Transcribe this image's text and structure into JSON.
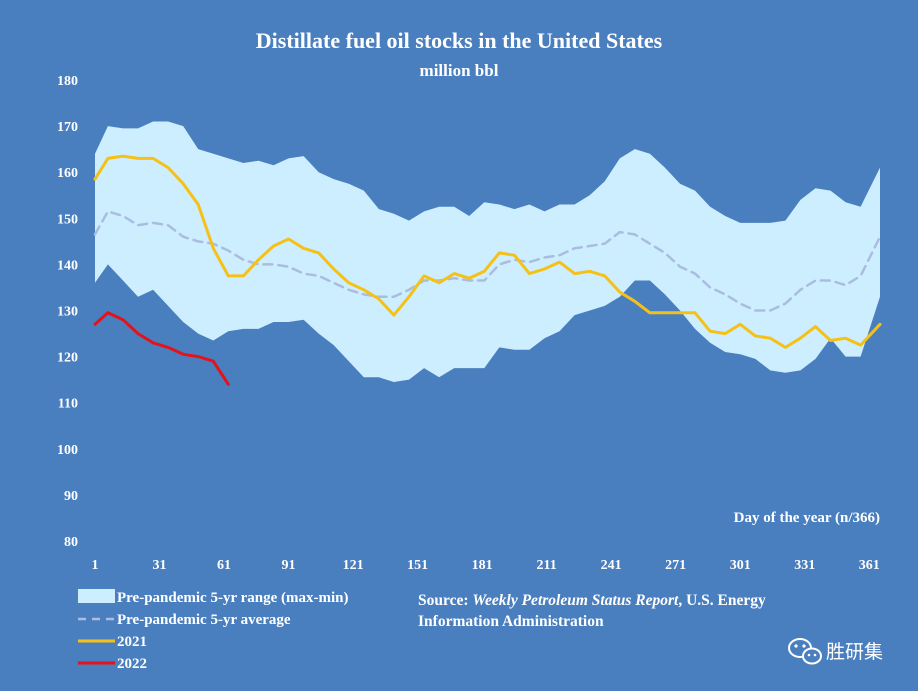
{
  "chart_data": {
    "type": "line",
    "title": "Distillate fuel oil stocks in the United States",
    "subtitle": "million bbl",
    "xlabel": "Day of the year (n/366)",
    "ylabel": "",
    "xlim": [
      1,
      366
    ],
    "ylim": [
      80,
      180
    ],
    "x_ticks": [
      "1",
      "31",
      "61",
      "91",
      "121",
      "151",
      "181",
      "211",
      "241",
      "271",
      "301",
      "331",
      "361"
    ],
    "y_ticks": [
      "80",
      "90",
      "100",
      "110",
      "120",
      "130",
      "140",
      "150",
      "160",
      "170",
      "180"
    ],
    "range": {
      "name": "Pre-pandemic 5-yr range (max-min)",
      "color": "#cdeeff",
      "x": [
        1,
        7,
        14,
        21,
        28,
        35,
        42,
        49,
        56,
        63,
        70,
        77,
        84,
        91,
        98,
        105,
        112,
        119,
        126,
        133,
        140,
        147,
        154,
        161,
        168,
        175,
        182,
        189,
        196,
        203,
        210,
        217,
        224,
        231,
        238,
        245,
        252,
        259,
        266,
        273,
        280,
        287,
        294,
        301,
        308,
        315,
        322,
        329,
        336,
        343,
        350,
        357,
        366
      ],
      "max": [
        164,
        170,
        169.5,
        169.5,
        171,
        171,
        170,
        165,
        164,
        163,
        162,
        162.5,
        161.5,
        163,
        163.5,
        160,
        158.5,
        157.5,
        156,
        152,
        151,
        149.5,
        151.5,
        152.5,
        152.5,
        150.5,
        153.5,
        153,
        152,
        153,
        151.5,
        153,
        153,
        155,
        158,
        163,
        165,
        164,
        161,
        157.5,
        156,
        152.5,
        150.5,
        149,
        149,
        149,
        149.5,
        154,
        156.5,
        156,
        153.5,
        152.5,
        161
      ],
      "min": [
        136,
        140,
        136.5,
        133,
        134.5,
        131,
        127.5,
        125,
        123.5,
        125.5,
        126,
        126,
        127.5,
        127.5,
        128,
        125,
        122.5,
        119,
        115.5,
        115.5,
        114.5,
        115,
        117.5,
        115.5,
        117.5,
        117.5,
        117.5,
        122,
        121.5,
        121.5,
        124,
        125.5,
        129,
        130,
        131,
        133,
        136.5,
        136.5,
        133.5,
        130,
        126,
        123,
        121,
        120.5,
        119.5,
        117,
        116.5,
        117,
        119.5,
        124,
        120,
        120,
        133
      ]
    },
    "series": [
      {
        "name": "Pre-pandemic 5-yr average",
        "color": "#aabde0",
        "style": "dashed",
        "x": [
          1,
          7,
          14,
          21,
          28,
          35,
          42,
          49,
          56,
          63,
          70,
          77,
          84,
          91,
          98,
          105,
          112,
          119,
          126,
          133,
          140,
          147,
          154,
          161,
          168,
          175,
          182,
          189,
          196,
          203,
          210,
          217,
          224,
          231,
          238,
          245,
          252,
          259,
          266,
          273,
          280,
          287,
          294,
          301,
          308,
          315,
          322,
          329,
          336,
          343,
          350,
          357,
          366
        ],
        "values": [
          146.5,
          151.5,
          150.5,
          148.5,
          149,
          148.5,
          146,
          145,
          144.5,
          143,
          141,
          140,
          140,
          139.5,
          138,
          137.5,
          136,
          134.5,
          133.5,
          133,
          133,
          134.5,
          136.5,
          136.5,
          137,
          136.5,
          136.5,
          140,
          141,
          140.5,
          141.5,
          142,
          143.5,
          144,
          144.5,
          147,
          146.5,
          144.5,
          142.5,
          139.5,
          138,
          135,
          133.5,
          131.5,
          130,
          130,
          131.5,
          134.5,
          136.5,
          136.5,
          135.5,
          137.5,
          146
        ]
      },
      {
        "name": "2021",
        "color": "#f5c116",
        "style": "solid",
        "x": [
          1,
          7,
          14,
          21,
          28,
          35,
          42,
          49,
          56,
          63,
          70,
          77,
          84,
          91,
          98,
          105,
          112,
          119,
          126,
          133,
          140,
          147,
          154,
          161,
          168,
          175,
          182,
          189,
          196,
          203,
          210,
          217,
          224,
          231,
          238,
          245,
          252,
          259,
          266,
          273,
          280,
          287,
          294,
          301,
          308,
          315,
          322,
          329,
          336,
          343,
          350,
          357,
          366
        ],
        "values": [
          158.5,
          163,
          163.5,
          163,
          163,
          161,
          157.5,
          153,
          143.5,
          137.5,
          137.5,
          141,
          144,
          145.5,
          143.5,
          142.5,
          139,
          136,
          134.5,
          132.5,
          129,
          133,
          137.5,
          136,
          138,
          137,
          138.5,
          142.5,
          142,
          138,
          139,
          140.5,
          138,
          138.5,
          137.5,
          134,
          132,
          129.5,
          129.5,
          129.5,
          129.5,
          125.5,
          125,
          127,
          124.5,
          124,
          122,
          124,
          126.5,
          123.5,
          124,
          122.5,
          127
        ]
      },
      {
        "name": "2022",
        "color": "#e3121b",
        "style": "solid",
        "x": [
          1,
          7,
          14,
          21,
          28,
          35,
          42,
          49,
          56,
          63
        ],
        "values": [
          127,
          129.5,
          128,
          125,
          123,
          122,
          120.5,
          120,
          119,
          114
        ]
      }
    ],
    "legend": {
      "placement": "bottom-left",
      "entries": [
        "Pre-pandemic 5-yr range (max-min)",
        "Pre-pandemic 5-yr average",
        "2021",
        "2022"
      ]
    }
  },
  "source": {
    "prefix": "Source: ",
    "title": "Weekly Petroleum Status Report",
    "suffix": ", U.S. Energy",
    "line2": "Information Administration"
  },
  "watermark": {
    "text": "胜研集",
    "icon": "wechat-icon"
  }
}
